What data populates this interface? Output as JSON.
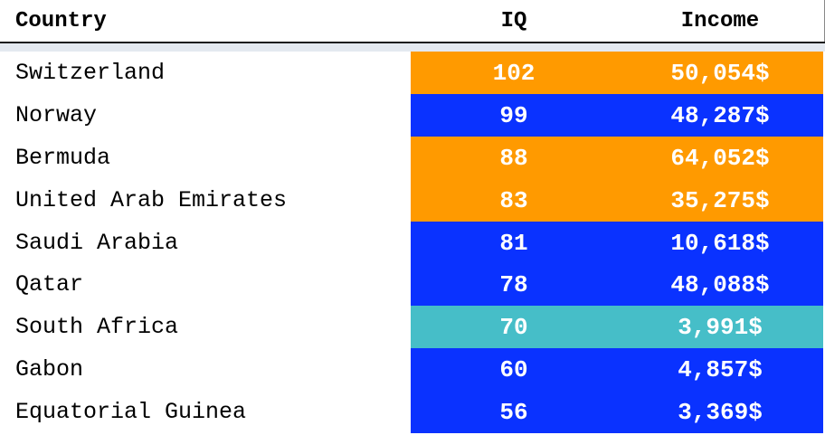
{
  "header": {
    "country": "Country",
    "iq": "IQ",
    "income": "Income"
  },
  "colors": {
    "orange": "#ff9a00",
    "blue": "#0a32ff",
    "teal": "#46bec8"
  },
  "rows": [
    {
      "country": "Switzerland",
      "iq": "102",
      "income": "50,054$",
      "color": "#ff9a00"
    },
    {
      "country": "Norway",
      "iq": "99",
      "income": "48,287$",
      "color": "#0a32ff"
    },
    {
      "country": "Bermuda",
      "iq": "88",
      "income": "64,052$",
      "color": "#ff9a00"
    },
    {
      "country": "United Arab Emirates",
      "iq": "83",
      "income": "35,275$",
      "color": "#ff9a00"
    },
    {
      "country": "Saudi Arabia",
      "iq": "81",
      "income": "10,618$",
      "color": "#0a32ff"
    },
    {
      "country": "Qatar",
      "iq": "78",
      "income": "48,088$",
      "color": "#0a32ff"
    },
    {
      "country": "South Africa",
      "iq": "70",
      "income": "3,991$",
      "color": "#46bec8"
    },
    {
      "country": "Gabon",
      "iq": "60",
      "income": "4,857$",
      "color": "#0a32ff"
    },
    {
      "country": "Equatorial Guinea",
      "iq": "56",
      "income": "3,369$",
      "color": "#0a32ff"
    }
  ]
}
